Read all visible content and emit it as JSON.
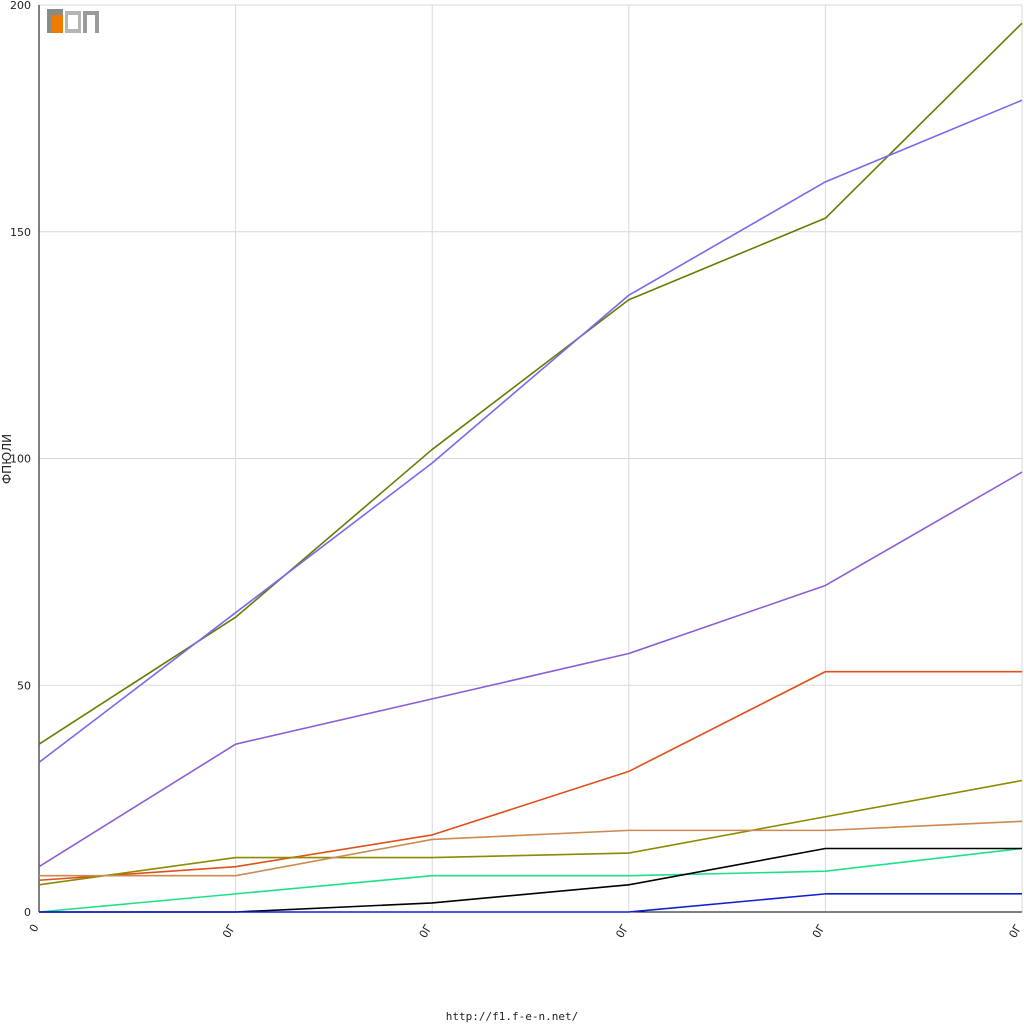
{
  "logo": {
    "text": "F1EN"
  },
  "footer": {
    "url": "http://f1.f-e-n.net/"
  },
  "chart_data": {
    "type": "line",
    "title": "",
    "xlabel": "",
    "ylabel": "ФПЮЛИ",
    "ylim": [
      0,
      200
    ],
    "yticks": [
      0,
      50,
      100,
      150,
      200
    ],
    "categories": [
      "0",
      "0Г",
      "0Г",
      "0Г",
      "0Г",
      "0Г"
    ],
    "grid": true,
    "legend": "none",
    "series": [
      {
        "color": "#6b7a00",
        "values": [
          37,
          65,
          102,
          135,
          153,
          196
        ]
      },
      {
        "color": "#7b68ee",
        "values": [
          33,
          66,
          99,
          136,
          161,
          179
        ]
      },
      {
        "color": "#8a5fd6",
        "values": [
          10,
          37,
          47,
          57,
          72,
          97
        ]
      },
      {
        "color": "#e0501a",
        "values": [
          7,
          10,
          17,
          31,
          53,
          53
        ]
      },
      {
        "color": "#8c8a00",
        "values": [
          6,
          12,
          12,
          13,
          21,
          29
        ]
      },
      {
        "color": "#cd8a50",
        "values": [
          8,
          8,
          16,
          18,
          18,
          20
        ]
      },
      {
        "color": "#1ee08a",
        "values": [
          0,
          4,
          8,
          8,
          9,
          14
        ]
      },
      {
        "color": "#000000",
        "values": [
          0,
          0,
          2,
          6,
          14,
          14
        ]
      },
      {
        "color": "#1020d0",
        "values": [
          0,
          0,
          0,
          0,
          4,
          4
        ]
      }
    ]
  }
}
